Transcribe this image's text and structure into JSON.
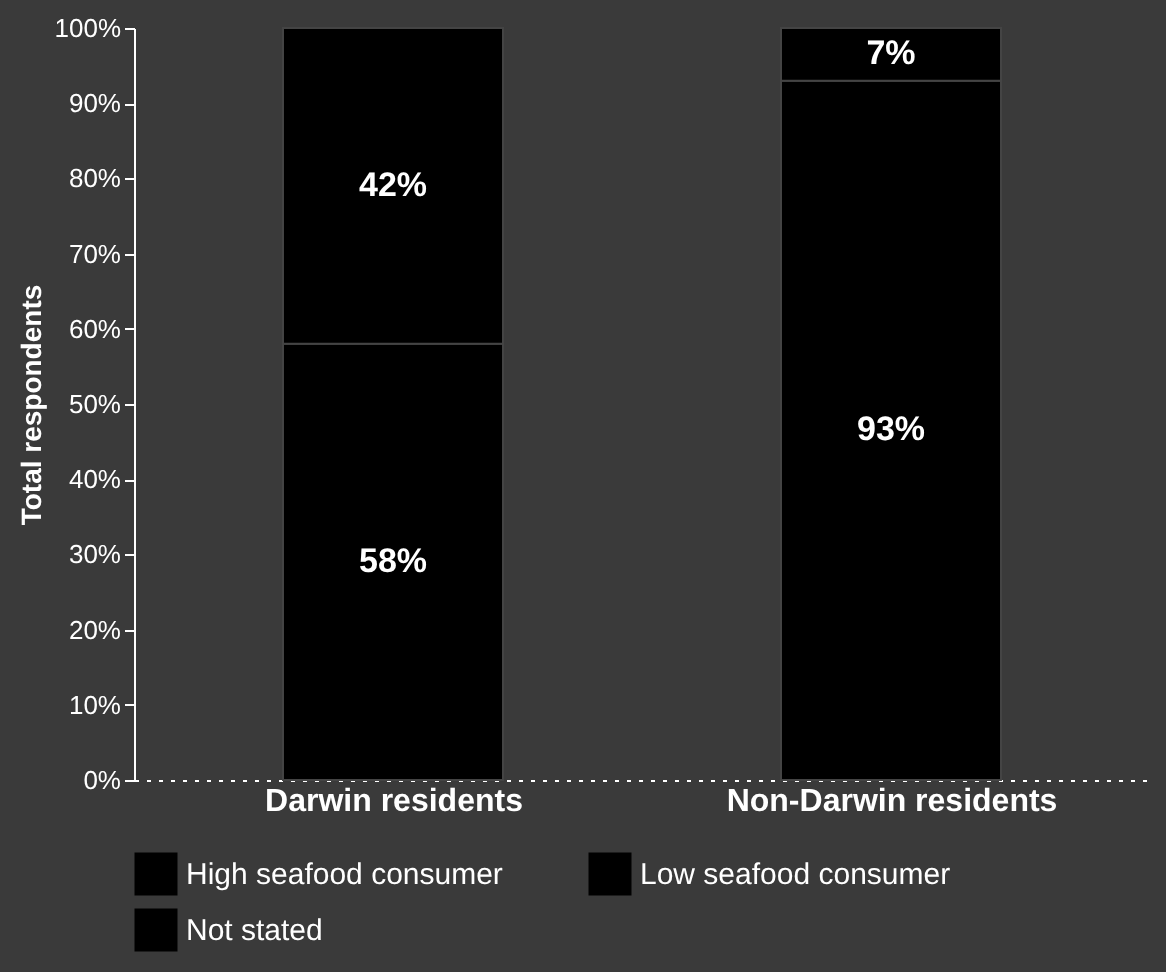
{
  "chart_data": {
    "type": "bar",
    "stacked": true,
    "ylabel": "Total respondents",
    "categories": [
      "Darwin residents",
      "Non-Darwin residents"
    ],
    "series": [
      {
        "name": "High seafood consumer",
        "color": "#000000",
        "values": [
          58,
          93
        ]
      },
      {
        "name": "Low seafood consumer",
        "color": "#000000",
        "values": [
          42,
          7
        ]
      },
      {
        "name": "Not stated",
        "color": "#000000",
        "values": [
          null,
          null
        ]
      }
    ],
    "ylim": [
      0,
      100
    ],
    "yticks": [
      {
        "value": 0,
        "label": "0%"
      },
      {
        "value": 10,
        "label": "10%"
      },
      {
        "value": 20,
        "label": "20%"
      },
      {
        "value": 30,
        "label": "30%"
      },
      {
        "value": 40,
        "label": "40%"
      },
      {
        "value": 50,
        "label": "50%"
      },
      {
        "value": 60,
        "label": "60%"
      },
      {
        "value": 70,
        "label": "70%"
      },
      {
        "value": 80,
        "label": "80%"
      },
      {
        "value": 90,
        "label": "90%"
      },
      {
        "value": 100,
        "label": "100%"
      }
    ],
    "value_labels": [
      [
        "58%",
        "93%"
      ],
      [
        "42%",
        "7%"
      ],
      [
        null,
        null
      ]
    ],
    "legend": "bottom",
    "grid": false
  }
}
